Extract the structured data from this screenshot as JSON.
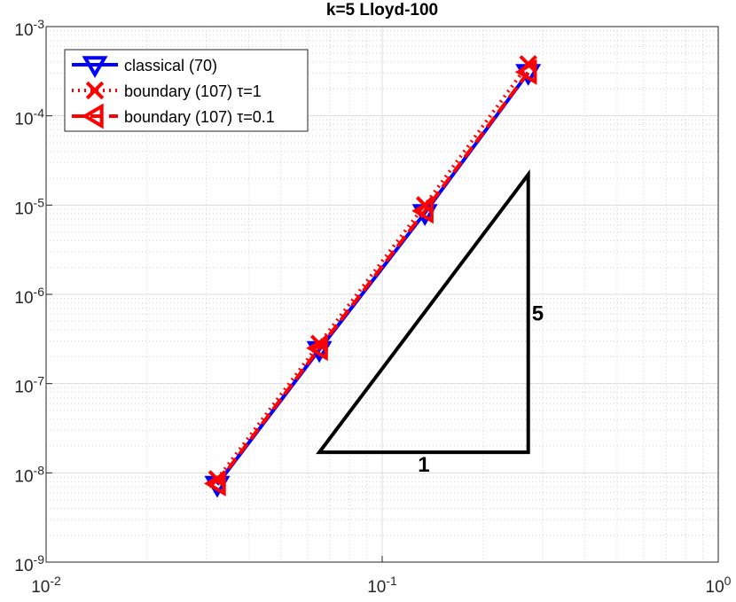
{
  "chart_data": {
    "type": "line",
    "title": "k=5 Lloyd-100",
    "x": [
      0.0323,
      0.065,
      0.134,
      0.272
    ],
    "series": [
      {
        "name": "classical (70)",
        "color": "#0000ff",
        "marker": "down-triangle",
        "dash": "solid",
        "values": [
          7.4e-09,
          2.4e-07,
          8.2e-06,
          0.000305
        ]
      },
      {
        "name": "boundary (107) τ=1",
        "color": "#ff0000",
        "marker": "x",
        "dash": "dotted",
        "values": [
          8.5e-09,
          2.8e-07,
          1e-05,
          0.00038
        ]
      },
      {
        "name": "boundary (107) τ=0.1",
        "color": "#ff0000",
        "marker": "left-triangle",
        "dash": "dashed",
        "values": [
          7.6e-09,
          2.5e-07,
          8.6e-06,
          0.00031
        ]
      }
    ],
    "xlim": [
      0.01,
      1
    ],
    "ylim": [
      1e-09,
      0.001
    ],
    "log_x": true,
    "log_y": true,
    "grid": true,
    "legend": "upper left",
    "xticks": [
      {
        "value": 0.01,
        "label": "10^-2"
      },
      {
        "value": 0.1,
        "label": "10^-1"
      },
      {
        "value": 1,
        "label": "10^0"
      }
    ],
    "yticks": [
      {
        "value": 1e-09,
        "label": "10^-9"
      },
      {
        "value": 1e-08,
        "label": "10^-8"
      },
      {
        "value": 1e-07,
        "label": "10^-7"
      },
      {
        "value": 1e-06,
        "label": "10^-6"
      },
      {
        "value": 1e-05,
        "label": "10^-5"
      },
      {
        "value": 0.0001,
        "label": "10^-4"
      },
      {
        "value": 0.001,
        "label": "10^-3"
      }
    ],
    "slope_triangle": {
      "x": [
        0.065,
        0.272,
        0.272
      ],
      "y": [
        1.7e-08,
        1.7e-08,
        2.2e-05
      ],
      "run_label": "1",
      "rise_label": "5"
    }
  }
}
